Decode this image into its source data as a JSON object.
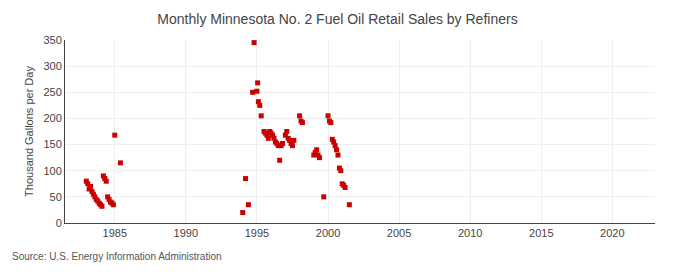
{
  "chart_data": {
    "type": "scatter",
    "title": "Monthly Minnesota No. 2 Fuel Oil Retail Sales by Refiners",
    "ylabel": "Thousand Gallons per Day",
    "annotations": [
      "Source: U.S. Energy Information Administration"
    ],
    "color": "#cc0000",
    "marker": "square",
    "grid": true,
    "xlim": [
      1981.5,
      2023
    ],
    "ylim": [
      0,
      350
    ],
    "xticks": [
      1985,
      1990,
      1995,
      2000,
      2005,
      2010,
      2015,
      2020
    ],
    "yticks": [
      0,
      50,
      100,
      150,
      200,
      250,
      300,
      350
    ],
    "x": [
      1983.0,
      1983.1,
      1983.2,
      1983.3,
      1983.4,
      1983.5,
      1983.6,
      1983.7,
      1983.8,
      1983.9,
      1984.0,
      1984.1,
      1984.2,
      1984.3,
      1984.4,
      1984.5,
      1984.6,
      1984.7,
      1984.8,
      1984.9,
      1985.0,
      1985.4,
      1994.0,
      1994.2,
      1994.4,
      1994.7,
      1994.8,
      1995.0,
      1995.05,
      1995.1,
      1995.2,
      1995.3,
      1995.5,
      1995.6,
      1995.7,
      1995.8,
      1995.9,
      1996.0,
      1996.1,
      1996.2,
      1996.3,
      1996.4,
      1996.5,
      1996.6,
      1996.7,
      1996.8,
      1997.0,
      1997.1,
      1997.2,
      1997.3,
      1997.4,
      1997.5,
      1997.6,
      1998.0,
      1998.1,
      1998.2,
      1999.0,
      1999.1,
      1999.2,
      1999.3,
      1999.4,
      1999.7,
      2000.0,
      2000.1,
      2000.2,
      2000.3,
      2000.4,
      2000.5,
      2000.6,
      2000.7,
      2000.8,
      2000.9,
      2001.0,
      2001.1,
      2001.2,
      2001.5
    ],
    "values": [
      80,
      75,
      65,
      70,
      60,
      55,
      50,
      45,
      42,
      38,
      35,
      32,
      90,
      85,
      80,
      50,
      45,
      40,
      38,
      35,
      168,
      115,
      20,
      85,
      35,
      250,
      345,
      252,
      268,
      232,
      225,
      205,
      175,
      172,
      168,
      162,
      175,
      172,
      168,
      162,
      155,
      152,
      148,
      120,
      148,
      152,
      168,
      175,
      162,
      158,
      152,
      148,
      158,
      205,
      195,
      192,
      130,
      135,
      140,
      130,
      125,
      50,
      205,
      195,
      192,
      160,
      155,
      148,
      140,
      130,
      105,
      100,
      75,
      72,
      68,
      35
    ]
  }
}
